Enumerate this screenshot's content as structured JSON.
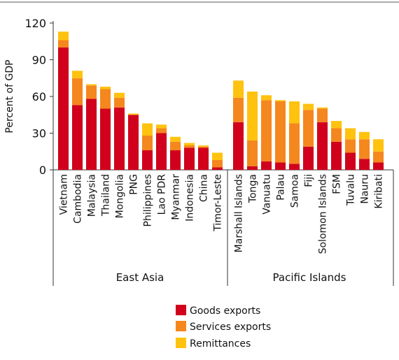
{
  "chart_data": {
    "type": "bar",
    "stacked": true,
    "ylabel": "Percent of GDP",
    "ylim": [
      0,
      120
    ],
    "yticks": [
      0,
      30,
      60,
      90,
      120
    ],
    "grid": false,
    "legend_position": "bottom",
    "colors": {
      "goods": "#d1001c",
      "services": "#f5871f",
      "remittances": "#ffc20e"
    },
    "groups": [
      {
        "name": "East Asia",
        "categories": [
          "Vietnam",
          "Cambodia",
          "Malaysia",
          "Thailand",
          "Mongolia",
          "PNG",
          "Philippines",
          "Lao PDR",
          "Myanmar",
          "Indonesia",
          "China",
          "Timor-Leste"
        ],
        "series": [
          {
            "name": "Goods exports",
            "values": [
              100,
              53,
              58,
              50,
              51,
              45,
              16,
              30,
              16,
              18,
              18,
              2
            ]
          },
          {
            "name": "Services exports",
            "values": [
              6,
              22,
              11,
              16,
              8,
              0,
              12,
              4,
              7,
              2,
              1,
              6
            ]
          },
          {
            "name": "Remittances",
            "values": [
              7,
              6,
              1,
              2,
              4,
              1,
              10,
              3,
              4,
              2,
              1,
              6
            ]
          }
        ]
      },
      {
        "name": "Pacific Islands",
        "categories": [
          "Marshall Islands",
          "Tonga",
          "Vanuatu",
          "Palau",
          "Samoa",
          "Fiji",
          "Solomon Islands",
          "FSM",
          "Tuvalu",
          "Nauru",
          "Kiribati"
        ],
        "series": [
          {
            "name": "Goods exports",
            "values": [
              39,
              3,
              7,
              6,
              5,
              19,
              39,
              23,
              14,
              9,
              6
            ]
          },
          {
            "name": "Services exports",
            "values": [
              20,
              21,
              50,
              50,
              33,
              30,
              11,
              11,
              11,
              16,
              9
            ]
          },
          {
            "name": "Remittances",
            "values": [
              14,
              40,
              4,
              1,
              18,
              5,
              1,
              6,
              9,
              6,
              10
            ]
          }
        ]
      }
    ],
    "legend": [
      "Goods exports",
      "Services exports",
      "Remittances"
    ]
  }
}
